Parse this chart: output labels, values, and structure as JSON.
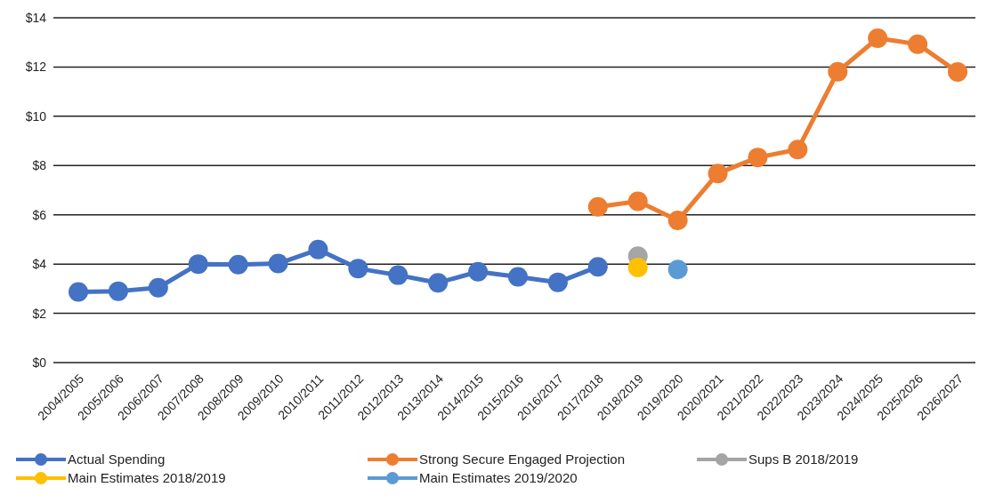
{
  "chart_data": {
    "type": "line",
    "categories": [
      "2004/2005",
      "2005/2006",
      "2006/2007",
      "2007/2008",
      "2008/2009",
      "2009/2010",
      "2010/2011",
      "2011/2012",
      "2012/2013",
      "2013/2014",
      "2014/2015",
      "2015/2016",
      "2016/2017",
      "2017/2018",
      "2018/2019",
      "2019/2020",
      "2020/2021",
      "2021/2022",
      "2022/2023",
      "2023/2024",
      "2024/2025",
      "2025/2026",
      "2026/2027"
    ],
    "series": [
      {
        "name": "Actual Spending",
        "color": "#4472c4",
        "values": [
          2.87,
          2.9,
          3.04,
          4.0,
          3.98,
          4.02,
          4.59,
          3.82,
          3.55,
          3.24,
          3.69,
          3.48,
          3.26,
          3.89,
          null,
          null,
          null,
          null,
          null,
          null,
          null,
          null,
          null
        ]
      },
      {
        "name": "Strong Secure Engaged Projection",
        "color": "#ed7d31",
        "values": [
          null,
          null,
          null,
          null,
          null,
          null,
          null,
          null,
          null,
          null,
          null,
          null,
          null,
          6.32,
          6.55,
          5.77,
          7.68,
          8.33,
          8.65,
          11.81,
          13.17,
          12.93,
          11.8
        ]
      },
      {
        "name": "Sups B 2018/2019",
        "type": "scatter",
        "color": "#a5a5a5",
        "values": [
          null,
          null,
          null,
          null,
          null,
          null,
          null,
          null,
          null,
          null,
          null,
          null,
          null,
          null,
          4.32,
          null,
          null,
          null,
          null,
          null,
          null,
          null,
          null
        ]
      },
      {
        "name": "Main Estimates 2018/2019",
        "type": "scatter",
        "color": "#ffc000",
        "values": [
          null,
          null,
          null,
          null,
          null,
          null,
          null,
          null,
          null,
          null,
          null,
          null,
          null,
          null,
          3.86,
          null,
          null,
          null,
          null,
          null,
          null,
          null,
          null
        ]
      },
      {
        "name": "Main Estimates 2019/2020",
        "type": "scatter",
        "color": "#5b9bd5",
        "values": [
          null,
          null,
          null,
          null,
          null,
          null,
          null,
          null,
          null,
          null,
          null,
          null,
          null,
          null,
          null,
          3.78,
          null,
          null,
          null,
          null,
          null,
          null,
          null
        ]
      }
    ],
    "ylim": [
      0,
      14
    ],
    "yticks": [
      {
        "value": 0,
        "label": "$0"
      },
      {
        "value": 2,
        "label": "$2"
      },
      {
        "value": 4,
        "label": "$4"
      },
      {
        "value": 6,
        "label": "$6"
      },
      {
        "value": 8,
        "label": "$8"
      },
      {
        "value": 10,
        "label": "$10"
      },
      {
        "value": 12,
        "label": "$12"
      },
      {
        "value": 14,
        "label": "$14"
      }
    ],
    "grid": "y",
    "legend": "bottom",
    "marker": "circle",
    "line_style": "solid"
  }
}
